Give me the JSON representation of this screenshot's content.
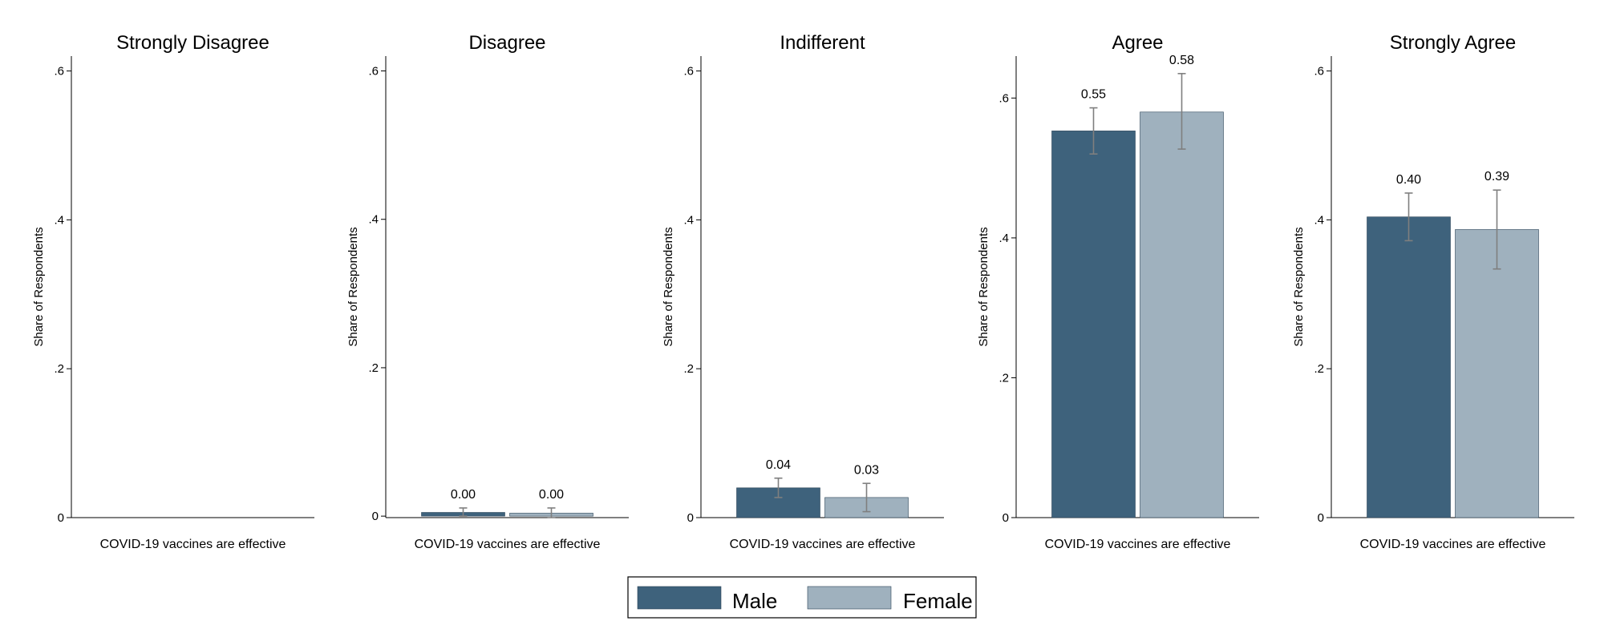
{
  "chart_data": {
    "type": "bar",
    "ylabel": "Share of Respondents",
    "xlabel": "COVID-19 vaccines are effective",
    "legend": {
      "placement": "bottom-center",
      "entries": [
        "Male",
        "Female"
      ]
    },
    "colors": {
      "Male": "#3e627c",
      "Female": "#9fb1be",
      "error_bar": "#7f7f7f"
    },
    "grid": false,
    "panels": [
      {
        "title": "Strongly Disagree",
        "ylim": [
          0,
          0.62
        ],
        "yticks": [
          0,
          0.2,
          0.4,
          0.6
        ],
        "ytick_labels": [
          "0",
          ".2",
          ".4",
          ".6"
        ],
        "series": []
      },
      {
        "title": "Disagree",
        "ylim": [
          -0.002,
          0.62
        ],
        "yticks": [
          0,
          0.2,
          0.4,
          0.6
        ],
        "ytick_labels": [
          "0",
          ".2",
          ".4",
          ".6"
        ],
        "series": [
          {
            "name": "Male",
            "value": 0.005,
            "ci": [
              0.0,
              0.011
            ],
            "label": "0.00"
          },
          {
            "name": "Female",
            "value": 0.004,
            "ci": [
              -0.002,
              0.011
            ],
            "label": "0.00"
          }
        ]
      },
      {
        "title": "Indifferent",
        "ylim": [
          0,
          0.62
        ],
        "yticks": [
          0,
          0.2,
          0.4,
          0.6
        ],
        "ytick_labels": [
          "0",
          ".2",
          ".4",
          ".6"
        ],
        "series": [
          {
            "name": "Male",
            "value": 0.04,
            "ci": [
              0.027,
              0.053
            ],
            "label": "0.04"
          },
          {
            "name": "Female",
            "value": 0.027,
            "ci": [
              0.008,
              0.046
            ],
            "label": "0.03"
          }
        ]
      },
      {
        "title": "Agree",
        "ylim": [
          0,
          0.66
        ],
        "yticks": [
          0,
          0.2,
          0.4,
          0.6
        ],
        "ytick_labels": [
          "0",
          ".2",
          ".4",
          ".6"
        ],
        "series": [
          {
            "name": "Male",
            "value": 0.553,
            "ci": [
              0.52,
              0.586
            ],
            "label": "0.55"
          },
          {
            "name": "Female",
            "value": 0.58,
            "ci": [
              0.527,
              0.635
            ],
            "label": "0.58"
          }
        ]
      },
      {
        "title": "Strongly Agree",
        "ylim": [
          0,
          0.62
        ],
        "yticks": [
          0,
          0.2,
          0.4,
          0.6
        ],
        "ytick_labels": [
          "0",
          ".2",
          ".4",
          ".6"
        ],
        "series": [
          {
            "name": "Male",
            "value": 0.404,
            "ci": [
              0.372,
              0.436
            ],
            "label": "0.40"
          },
          {
            "name": "Female",
            "value": 0.387,
            "ci": [
              0.334,
              0.44
            ],
            "label": "0.39"
          }
        ]
      }
    ]
  }
}
